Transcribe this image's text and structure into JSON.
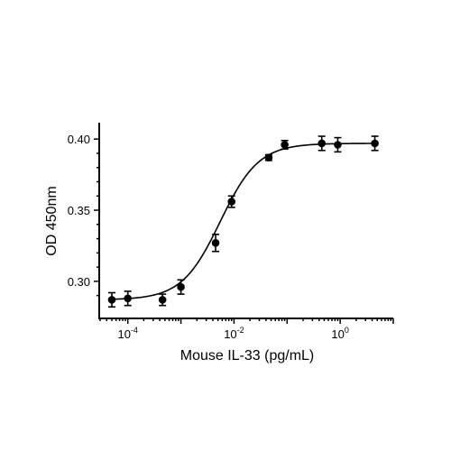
{
  "chart_data": {
    "type": "scatter",
    "xlabel": "Mouse IL-33 (pg/mL)",
    "ylabel": "OD 450nm",
    "x_scale": "log",
    "xlim": [
      5e-05,
      10
    ],
    "ylim": [
      0.279,
      0.409
    ],
    "x_ticks": [
      {
        "value": 0.0001,
        "base": "10",
        "exp": "-4"
      },
      {
        "value": 0.01,
        "base": "10",
        "exp": "-2"
      },
      {
        "value": 1,
        "base": "10",
        "exp": "0"
      }
    ],
    "y_ticks": [
      {
        "value": 0.3,
        "label": "0.30"
      },
      {
        "value": 0.35,
        "label": "0.35"
      },
      {
        "value": 0.4,
        "label": "0.40"
      }
    ],
    "grid": false,
    "series": [
      {
        "points": [
          {
            "x": 5e-05,
            "y": 0.287,
            "err": 0.005
          },
          {
            "x": 0.0001,
            "y": 0.288,
            "err": 0.005
          },
          {
            "x": 0.00045,
            "y": 0.287,
            "err": 0.004
          },
          {
            "x": 0.001,
            "y": 0.296,
            "err": 0.005
          },
          {
            "x": 0.0045,
            "y": 0.327,
            "err": 0.006
          },
          {
            "x": 0.009,
            "y": 0.356,
            "err": 0.004
          },
          {
            "x": 0.045,
            "y": 0.387,
            "err": 0.002
          },
          {
            "x": 0.09,
            "y": 0.396,
            "err": 0.003
          },
          {
            "x": 0.45,
            "y": 0.397,
            "err": 0.005
          },
          {
            "x": 0.9,
            "y": 0.396,
            "err": 0.005
          },
          {
            "x": 4.5,
            "y": 0.397,
            "err": 0.005
          }
        ],
        "fit": {
          "model": "4PL",
          "bottom": 0.287,
          "top": 0.397,
          "ec50": 0.0055,
          "hill": 1.2
        }
      }
    ]
  }
}
